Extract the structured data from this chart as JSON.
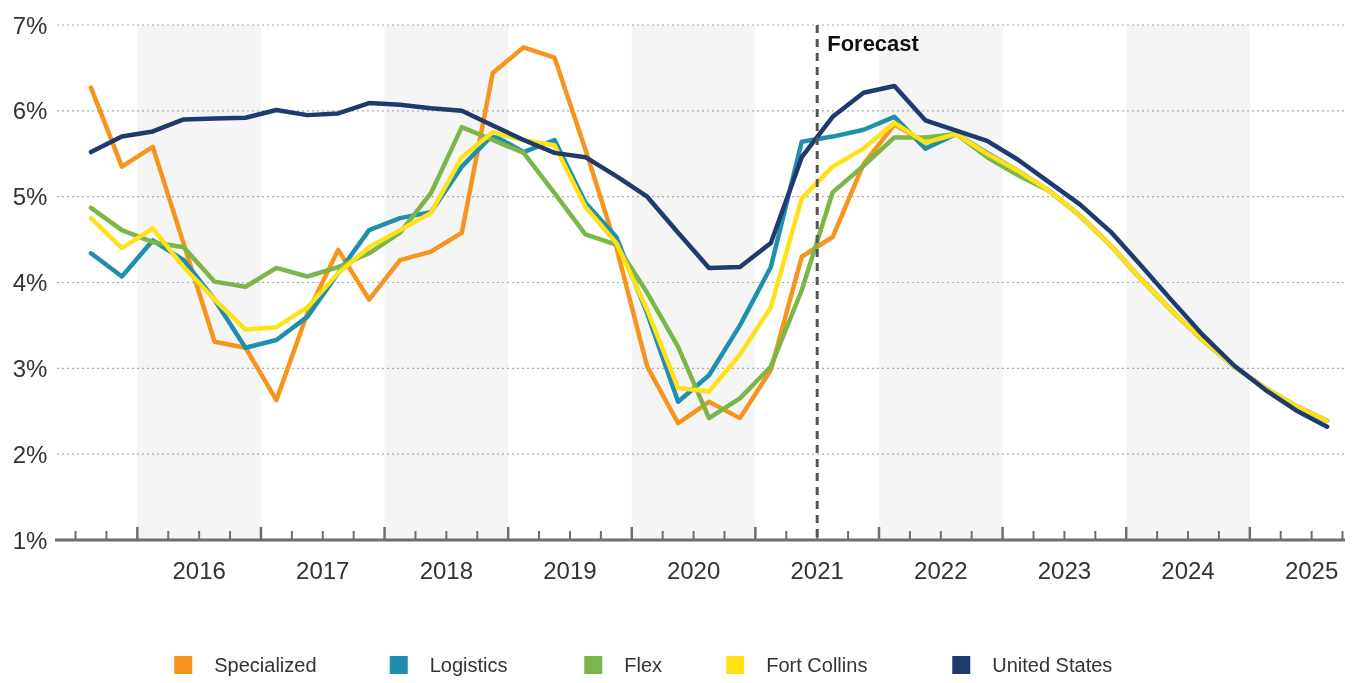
{
  "chart_data": {
    "type": "line",
    "x": [
      2015.625,
      2015.875,
      2016.125,
      2016.375,
      2016.625,
      2016.875,
      2017.125,
      2017.375,
      2017.625,
      2017.875,
      2018.125,
      2018.375,
      2018.625,
      2018.875,
      2019.125,
      2019.375,
      2019.625,
      2019.875,
      2020.125,
      2020.375,
      2020.625,
      2020.875,
      2021.125,
      2021.375,
      2021.625,
      2021.875,
      2022.125,
      2022.375,
      2022.625,
      2022.875,
      2023.125,
      2023.375,
      2023.625,
      2023.875,
      2024.125,
      2024.375,
      2024.625,
      2024.875,
      2025.125,
      2025.375,
      2025.625
    ],
    "series": [
      {
        "name": "Specialized",
        "color": "#f7941d",
        "values": [
          6.27,
          5.35,
          5.58,
          4.45,
          3.31,
          3.24,
          2.63,
          3.64,
          4.38,
          3.8,
          4.26,
          4.36,
          4.58,
          6.44,
          6.74,
          6.62,
          5.55,
          4.41,
          3.02,
          2.36,
          2.61,
          2.42,
          2.98,
          4.3,
          4.53,
          5.38,
          5.84,
          5.63,
          5.73,
          null,
          null,
          null,
          null,
          null,
          null,
          null,
          null,
          null,
          null,
          null,
          null
        ]
      },
      {
        "name": "Logistics",
        "color": "#1f8fad",
        "values": [
          4.34,
          4.07,
          4.49,
          4.26,
          3.8,
          3.24,
          3.33,
          3.6,
          4.11,
          4.61,
          4.75,
          4.82,
          5.35,
          5.72,
          5.52,
          5.66,
          4.93,
          4.53,
          3.64,
          2.61,
          2.92,
          3.5,
          4.18,
          5.64,
          5.7,
          5.78,
          5.93,
          5.56,
          5.73,
          5.51,
          5.3,
          5.07,
          4.78,
          4.43,
          4.03,
          3.66,
          3.32,
          3.02,
          2.77,
          2.56,
          2.39
        ]
      },
      {
        "name": "Flex",
        "color": "#7ab648",
        "values": [
          4.87,
          4.61,
          4.47,
          4.41,
          4.01,
          3.95,
          4.17,
          4.07,
          4.18,
          4.34,
          4.58,
          5.04,
          5.81,
          5.66,
          5.51,
          5.04,
          4.56,
          4.44,
          3.88,
          3.25,
          2.42,
          2.65,
          3.02,
          3.91,
          5.05,
          5.36,
          5.69,
          5.69,
          5.73,
          5.46,
          5.25,
          5.07,
          4.78,
          4.43,
          4.03,
          3.66,
          3.32,
          3.02,
          2.77,
          2.56,
          2.39
        ]
      },
      {
        "name": "Fort Collins",
        "color": "#ffe11a",
        "values": [
          4.75,
          4.4,
          4.63,
          4.18,
          3.8,
          3.45,
          3.48,
          3.71,
          4.11,
          4.41,
          4.61,
          4.81,
          5.46,
          5.75,
          5.66,
          5.6,
          4.88,
          4.46,
          3.68,
          2.77,
          2.73,
          3.16,
          3.71,
          4.98,
          5.35,
          5.56,
          5.86,
          5.63,
          5.73,
          5.5,
          5.3,
          5.07,
          4.78,
          4.43,
          4.03,
          3.66,
          3.32,
          3.02,
          2.77,
          2.56,
          2.39
        ]
      },
      {
        "name": "United States",
        "color": "#1f3a6e",
        "values": [
          5.52,
          5.7,
          5.76,
          5.9,
          5.91,
          5.92,
          6.01,
          5.95,
          5.97,
          6.09,
          6.07,
          6.03,
          6.0,
          5.83,
          5.66,
          5.51,
          5.46,
          5.24,
          5.0,
          4.58,
          4.17,
          4.18,
          4.46,
          5.46,
          5.93,
          6.21,
          6.29,
          5.89,
          5.77,
          5.65,
          5.43,
          5.17,
          4.91,
          4.59,
          4.19,
          3.78,
          3.38,
          3.03,
          2.75,
          2.51,
          2.32
        ]
      }
    ],
    "xlim": [
      2015.35,
      2025.77
    ],
    "xticks": [
      {
        "value": 2015.5,
        "label": null
      },
      {
        "value": 2015.75,
        "label": null
      },
      {
        "value": 2016,
        "label": null
      },
      {
        "value": 2016.25,
        "label": null
      },
      {
        "value": 2016.5,
        "label": "2016"
      },
      {
        "value": 2016.75,
        "label": null
      },
      {
        "value": 2017,
        "label": null
      },
      {
        "value": 2017.25,
        "label": null
      },
      {
        "value": 2017.5,
        "label": "2017"
      },
      {
        "value": 2017.75,
        "label": null
      },
      {
        "value": 2018,
        "label": null
      },
      {
        "value": 2018.25,
        "label": null
      },
      {
        "value": 2018.5,
        "label": "2018"
      },
      {
        "value": 2018.75,
        "label": null
      },
      {
        "value": 2019,
        "label": null
      },
      {
        "value": 2019.25,
        "label": null
      },
      {
        "value": 2019.5,
        "label": "2019"
      },
      {
        "value": 2019.75,
        "label": null
      },
      {
        "value": 2020,
        "label": null
      },
      {
        "value": 2020.25,
        "label": null
      },
      {
        "value": 2020.5,
        "label": "2020"
      },
      {
        "value": 2020.75,
        "label": null
      },
      {
        "value": 2021,
        "label": null
      },
      {
        "value": 2021.25,
        "label": null
      },
      {
        "value": 2021.5,
        "label": "2021"
      },
      {
        "value": 2021.75,
        "label": null
      },
      {
        "value": 2022,
        "label": null
      },
      {
        "value": 2022.25,
        "label": null
      },
      {
        "value": 2022.5,
        "label": "2022"
      },
      {
        "value": 2022.75,
        "label": null
      },
      {
        "value": 2023,
        "label": null
      },
      {
        "value": 2023.25,
        "label": null
      },
      {
        "value": 2023.5,
        "label": "2023"
      },
      {
        "value": 2023.75,
        "label": null
      },
      {
        "value": 2024,
        "label": null
      },
      {
        "value": 2024.25,
        "label": null
      },
      {
        "value": 2024.5,
        "label": "2024"
      },
      {
        "value": 2024.75,
        "label": null
      },
      {
        "value": 2025,
        "label": null
      },
      {
        "value": 2025.25,
        "label": null
      },
      {
        "value": 2025.5,
        "label": "2025"
      },
      {
        "value": 2025.75,
        "label": null
      }
    ],
    "ylim": [
      1,
      7
    ],
    "yticks": [
      {
        "value": 1,
        "label": "1%"
      },
      {
        "value": 2,
        "label": "2%"
      },
      {
        "value": 3,
        "label": "3%"
      },
      {
        "value": 4,
        "label": "4%"
      },
      {
        "value": 5,
        "label": "5%"
      },
      {
        "value": 6,
        "label": "6%"
      },
      {
        "value": 7,
        "label": "7%"
      }
    ],
    "grid": "y",
    "line_style": "solid",
    "marker": "none",
    "legend": "bottom",
    "ref_lines": [
      {
        "axis": "x",
        "value": 2021.5,
        "label": "Forecast",
        "color": "#555555",
        "line_style": "dashed"
      }
    ],
    "bands": [
      {
        "axis": "x",
        "from": 2016,
        "to": 2017,
        "color": "#f5f5f5"
      },
      {
        "axis": "x",
        "from": 2018,
        "to": 2019,
        "color": "#f5f5f5"
      },
      {
        "axis": "x",
        "from": 2020,
        "to": 2021,
        "color": "#f5f5f5"
      },
      {
        "axis": "x",
        "from": 2022,
        "to": 2023,
        "color": "#f5f5f5"
      },
      {
        "axis": "x",
        "from": 2024,
        "to": 2025,
        "color": "#f5f5f5"
      }
    ]
  }
}
